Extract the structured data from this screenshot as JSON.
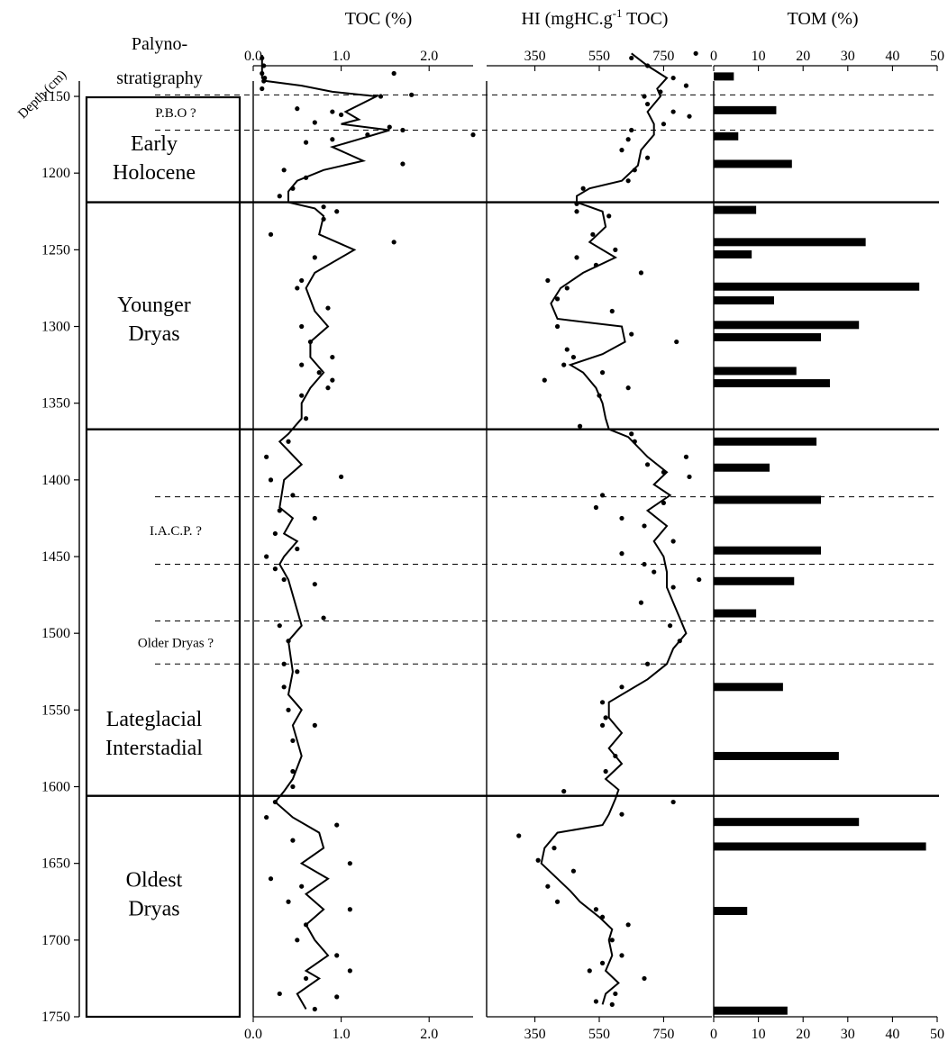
{
  "chart_data": {
    "type": "line",
    "depth_axis": {
      "title": "Depth (cm)",
      "range": [
        1140,
        1750
      ],
      "ticks": [
        1150,
        1200,
        1250,
        1300,
        1350,
        1400,
        1450,
        1500,
        1550,
        1600,
        1650,
        1700,
        1750
      ]
    },
    "palynostratigraphy": {
      "title_line1": "Palyno-",
      "title_line2": "stratigraphy",
      "zones": [
        {
          "lines": [
            "Early",
            "Holocene"
          ],
          "label_depth": 1190
        },
        {
          "lines": [
            "Younger",
            "Dryas"
          ],
          "label_depth": 1295
        },
        {
          "lines": [
            "Lateglacial",
            "Interstadial"
          ],
          "label_depth": 1565
        },
        {
          "lines": [
            "Oldest",
            "Dryas"
          ],
          "label_depth": 1670
        }
      ],
      "zone_boundaries": [
        1219,
        1367,
        1606
      ],
      "events": [
        {
          "label": "P.B.O ?",
          "top": 1149,
          "bottom": 1172
        },
        {
          "label": "I.A.C.P. ?",
          "top": 1411,
          "bottom": 1455
        },
        {
          "label": "Older Dryas ?",
          "top": 1492,
          "bottom": 1520
        }
      ]
    },
    "toc": {
      "title": "TOC (%)",
      "xlim": [
        0.0,
        2.5
      ],
      "ticks": [
        "0.0",
        "1.0",
        "2.0"
      ],
      "points": [
        [
          0.1,
          1125
        ],
        [
          0.12,
          1130
        ],
        [
          0.1,
          1135
        ],
        [
          0.13,
          1138
        ],
        [
          0.12,
          1140
        ],
        [
          0.1,
          1145
        ],
        [
          0.5,
          1158
        ],
        [
          0.9,
          1160
        ],
        [
          1.45,
          1150
        ],
        [
          1.0,
          1162
        ],
        [
          0.7,
          1167
        ],
        [
          1.3,
          1175
        ],
        [
          0.9,
          1178
        ],
        [
          1.55,
          1170
        ],
        [
          1.7,
          1172
        ],
        [
          1.8,
          1149
        ],
        [
          2.5,
          1175
        ],
        [
          0.6,
          1180
        ],
        [
          1.6,
          1135
        ],
        [
          0.35,
          1198
        ],
        [
          1.7,
          1194
        ],
        [
          0.6,
          1203
        ],
        [
          0.45,
          1210
        ],
        [
          0.3,
          1215
        ],
        [
          0.8,
          1222
        ],
        [
          0.8,
          1230
        ],
        [
          0.95,
          1225
        ],
        [
          0.2,
          1240
        ],
        [
          1.6,
          1245
        ],
        [
          0.7,
          1255
        ],
        [
          0.55,
          1270
        ],
        [
          0.5,
          1275
        ],
        [
          0.85,
          1288
        ],
        [
          0.55,
          1300
        ],
        [
          0.65,
          1310
        ],
        [
          0.9,
          1320
        ],
        [
          0.55,
          1325
        ],
        [
          0.75,
          1330
        ],
        [
          0.9,
          1335
        ],
        [
          0.85,
          1340
        ],
        [
          0.55,
          1345
        ],
        [
          0.6,
          1360
        ],
        [
          0.4,
          1375
        ],
        [
          0.15,
          1385
        ],
        [
          1.0,
          1398
        ],
        [
          0.2,
          1400
        ],
        [
          0.45,
          1410
        ],
        [
          0.3,
          1420
        ],
        [
          0.7,
          1425
        ],
        [
          0.25,
          1435
        ],
        [
          0.5,
          1445
        ],
        [
          0.15,
          1450
        ],
        [
          0.25,
          1458
        ],
        [
          0.35,
          1465
        ],
        [
          0.7,
          1468
        ],
        [
          0.8,
          1490
        ],
        [
          0.3,
          1495
        ],
        [
          0.4,
          1505
        ],
        [
          0.35,
          1520
        ],
        [
          0.5,
          1525
        ],
        [
          0.35,
          1535
        ],
        [
          0.7,
          1560
        ],
        [
          0.4,
          1550
        ],
        [
          0.45,
          1570
        ],
        [
          0.45,
          1590
        ],
        [
          0.45,
          1600
        ],
        [
          0.25,
          1610
        ],
        [
          0.15,
          1620
        ],
        [
          0.95,
          1625
        ],
        [
          0.45,
          1635
        ],
        [
          1.1,
          1650
        ],
        [
          0.2,
          1660
        ],
        [
          0.55,
          1665
        ],
        [
          0.4,
          1675
        ],
        [
          1.1,
          1680
        ],
        [
          0.6,
          1690
        ],
        [
          0.5,
          1700
        ],
        [
          0.95,
          1710
        ],
        [
          1.1,
          1720
        ],
        [
          0.6,
          1725
        ],
        [
          0.3,
          1735
        ],
        [
          0.95,
          1737
        ],
        [
          0.7,
          1745
        ]
      ],
      "line": [
        [
          0.1,
          1123
        ],
        [
          0.1,
          1138
        ],
        [
          0.15,
          1140
        ],
        [
          0.55,
          1143
        ],
        [
          0.9,
          1147
        ],
        [
          1.4,
          1150
        ],
        [
          1.05,
          1160
        ],
        [
          1.2,
          1165
        ],
        [
          1.0,
          1168
        ],
        [
          1.55,
          1172
        ],
        [
          1.2,
          1178
        ],
        [
          0.9,
          1183
        ],
        [
          1.25,
          1192
        ],
        [
          0.8,
          1198
        ],
        [
          0.5,
          1205
        ],
        [
          0.4,
          1212
        ],
        [
          0.4,
          1219
        ],
        [
          0.7,
          1223
        ],
        [
          0.8,
          1228
        ],
        [
          0.75,
          1240
        ],
        [
          1.15,
          1250
        ],
        [
          0.7,
          1265
        ],
        [
          0.6,
          1275
        ],
        [
          0.7,
          1290
        ],
        [
          0.85,
          1300
        ],
        [
          0.65,
          1310
        ],
        [
          0.65,
          1320
        ],
        [
          0.8,
          1330
        ],
        [
          0.65,
          1340
        ],
        [
          0.55,
          1350
        ],
        [
          0.55,
          1360
        ],
        [
          0.4,
          1370
        ],
        [
          0.3,
          1375
        ],
        [
          0.55,
          1390
        ],
        [
          0.35,
          1400
        ],
        [
          0.3,
          1418
        ],
        [
          0.45,
          1425
        ],
        [
          0.35,
          1435
        ],
        [
          0.5,
          1440
        ],
        [
          0.35,
          1450
        ],
        [
          0.3,
          1455
        ],
        [
          0.4,
          1465
        ],
        [
          0.55,
          1495
        ],
        [
          0.4,
          1505
        ],
        [
          0.45,
          1525
        ],
        [
          0.4,
          1540
        ],
        [
          0.55,
          1550
        ],
        [
          0.45,
          1560
        ],
        [
          0.55,
          1580
        ],
        [
          0.45,
          1595
        ],
        [
          0.35,
          1603
        ],
        [
          0.25,
          1610
        ],
        [
          0.45,
          1620
        ],
        [
          0.75,
          1630
        ],
        [
          0.8,
          1640
        ],
        [
          0.55,
          1650
        ],
        [
          0.85,
          1660
        ],
        [
          0.6,
          1670
        ],
        [
          0.8,
          1680
        ],
        [
          0.6,
          1690
        ],
        [
          0.7,
          1700
        ],
        [
          0.85,
          1710
        ],
        [
          0.6,
          1720
        ],
        [
          0.75,
          1725
        ],
        [
          0.5,
          1735
        ],
        [
          0.6,
          1745
        ]
      ]
    },
    "hi": {
      "title_prefix": "HI (mgHC.g",
      "title_sup": "-1",
      "title_suffix": " TOC)",
      "xlim": [
        200,
        900
      ],
      "ticks": [
        "350",
        "550",
        "750"
      ],
      "points": [
        [
          850,
          1122
        ],
        [
          650,
          1125
        ],
        [
          700,
          1130
        ],
        [
          780,
          1138
        ],
        [
          820,
          1143
        ],
        [
          740,
          1147
        ],
        [
          690,
          1150
        ],
        [
          700,
          1155
        ],
        [
          780,
          1160
        ],
        [
          830,
          1163
        ],
        [
          750,
          1168
        ],
        [
          650,
          1172
        ],
        [
          640,
          1178
        ],
        [
          620,
          1185
        ],
        [
          700,
          1190
        ],
        [
          660,
          1198
        ],
        [
          640,
          1205
        ],
        [
          500,
          1210
        ],
        [
          480,
          1220
        ],
        [
          480,
          1225
        ],
        [
          580,
          1228
        ],
        [
          530,
          1240
        ],
        [
          600,
          1250
        ],
        [
          480,
          1255
        ],
        [
          540,
          1260
        ],
        [
          680,
          1265
        ],
        [
          390,
          1270
        ],
        [
          450,
          1275
        ],
        [
          420,
          1282
        ],
        [
          590,
          1290
        ],
        [
          420,
          1300
        ],
        [
          650,
          1305
        ],
        [
          790,
          1310
        ],
        [
          450,
          1315
        ],
        [
          470,
          1320
        ],
        [
          440,
          1325
        ],
        [
          560,
          1330
        ],
        [
          380,
          1335
        ],
        [
          640,
          1340
        ],
        [
          550,
          1345
        ],
        [
          490,
          1365
        ],
        [
          650,
          1370
        ],
        [
          660,
          1375
        ],
        [
          820,
          1385
        ],
        [
          700,
          1390
        ],
        [
          750,
          1395
        ],
        [
          830,
          1398
        ],
        [
          560,
          1410
        ],
        [
          750,
          1415
        ],
        [
          540,
          1418
        ],
        [
          620,
          1425
        ],
        [
          690,
          1430
        ],
        [
          780,
          1440
        ],
        [
          620,
          1448
        ],
        [
          690,
          1455
        ],
        [
          720,
          1460
        ],
        [
          860,
          1465
        ],
        [
          780,
          1470
        ],
        [
          680,
          1480
        ],
        [
          770,
          1495
        ],
        [
          800,
          1505
        ],
        [
          700,
          1520
        ],
        [
          620,
          1535
        ],
        [
          560,
          1545
        ],
        [
          570,
          1555
        ],
        [
          560,
          1560
        ],
        [
          600,
          1580
        ],
        [
          570,
          1590
        ],
        [
          440,
          1603
        ],
        [
          780,
          1610
        ],
        [
          620,
          1618
        ],
        [
          300,
          1632
        ],
        [
          410,
          1640
        ],
        [
          360,
          1648
        ],
        [
          470,
          1655
        ],
        [
          390,
          1665
        ],
        [
          420,
          1675
        ],
        [
          540,
          1680
        ],
        [
          560,
          1685
        ],
        [
          640,
          1690
        ],
        [
          590,
          1700
        ],
        [
          620,
          1710
        ],
        [
          560,
          1715
        ],
        [
          520,
          1720
        ],
        [
          690,
          1725
        ],
        [
          600,
          1735
        ],
        [
          540,
          1740
        ],
        [
          590,
          1742
        ]
      ],
      "line": [
        [
          650,
          1122
        ],
        [
          700,
          1130
        ],
        [
          760,
          1138
        ],
        [
          730,
          1145
        ],
        [
          740,
          1150
        ],
        [
          700,
          1160
        ],
        [
          720,
          1168
        ],
        [
          720,
          1175
        ],
        [
          680,
          1185
        ],
        [
          670,
          1195
        ],
        [
          620,
          1205
        ],
        [
          520,
          1210
        ],
        [
          480,
          1215
        ],
        [
          480,
          1219
        ],
        [
          560,
          1225
        ],
        [
          570,
          1235
        ],
        [
          520,
          1245
        ],
        [
          600,
          1255
        ],
        [
          500,
          1265
        ],
        [
          430,
          1275
        ],
        [
          400,
          1285
        ],
        [
          420,
          1295
        ],
        [
          620,
          1300
        ],
        [
          630,
          1310
        ],
        [
          560,
          1318
        ],
        [
          460,
          1325
        ],
        [
          500,
          1330
        ],
        [
          540,
          1340
        ],
        [
          560,
          1350
        ],
        [
          570,
          1360
        ],
        [
          580,
          1367
        ],
        [
          640,
          1372
        ],
        [
          700,
          1385
        ],
        [
          760,
          1395
        ],
        [
          720,
          1403
        ],
        [
          770,
          1410
        ],
        [
          700,
          1420
        ],
        [
          760,
          1430
        ],
        [
          720,
          1440
        ],
        [
          750,
          1450
        ],
        [
          760,
          1460
        ],
        [
          760,
          1470
        ],
        [
          780,
          1480
        ],
        [
          800,
          1490
        ],
        [
          820,
          1500
        ],
        [
          780,
          1510
        ],
        [
          760,
          1520
        ],
        [
          700,
          1530
        ],
        [
          580,
          1545
        ],
        [
          580,
          1555
        ],
        [
          620,
          1565
        ],
        [
          580,
          1575
        ],
        [
          620,
          1585
        ],
        [
          570,
          1595
        ],
        [
          610,
          1602
        ],
        [
          600,
          1608
        ],
        [
          580,
          1618
        ],
        [
          560,
          1625
        ],
        [
          420,
          1630
        ],
        [
          380,
          1640
        ],
        [
          370,
          1650
        ],
        [
          420,
          1660
        ],
        [
          460,
          1668
        ],
        [
          490,
          1675
        ],
        [
          550,
          1685
        ],
        [
          590,
          1693
        ],
        [
          580,
          1700
        ],
        [
          590,
          1710
        ],
        [
          570,
          1720
        ],
        [
          610,
          1728
        ],
        [
          570,
          1735
        ],
        [
          560,
          1742
        ]
      ]
    },
    "tom": {
      "title": "TOM (%)",
      "xlim": [
        0,
        50
      ],
      "ticks": [
        "0",
        "10",
        "20",
        "30",
        "40",
        "50"
      ],
      "bars": [
        {
          "depth": 1137,
          "value": 4.5
        },
        {
          "depth": 1159,
          "value": 14
        },
        {
          "depth": 1176,
          "value": 5.5
        },
        {
          "depth": 1194,
          "value": 17.5
        },
        {
          "depth": 1224,
          "value": 9.5
        },
        {
          "depth": 1245,
          "value": 34
        },
        {
          "depth": 1253,
          "value": 8.5
        },
        {
          "depth": 1274,
          "value": 46
        },
        {
          "depth": 1283,
          "value": 13.5
        },
        {
          "depth": 1299,
          "value": 32.5
        },
        {
          "depth": 1307,
          "value": 24
        },
        {
          "depth": 1329,
          "value": 18.5
        },
        {
          "depth": 1337,
          "value": 26
        },
        {
          "depth": 1375,
          "value": 23
        },
        {
          "depth": 1392,
          "value": 12.5
        },
        {
          "depth": 1413,
          "value": 24
        },
        {
          "depth": 1446,
          "value": 24
        },
        {
          "depth": 1466,
          "value": 18
        },
        {
          "depth": 1487,
          "value": 9.5
        },
        {
          "depth": 1535,
          "value": 15.5
        },
        {
          "depth": 1580,
          "value": 28
        },
        {
          "depth": 1623,
          "value": 32.5
        },
        {
          "depth": 1639,
          "value": 47.5
        },
        {
          "depth": 1681,
          "value": 7.5
        },
        {
          "depth": 1746,
          "value": 16.5
        }
      ]
    }
  }
}
